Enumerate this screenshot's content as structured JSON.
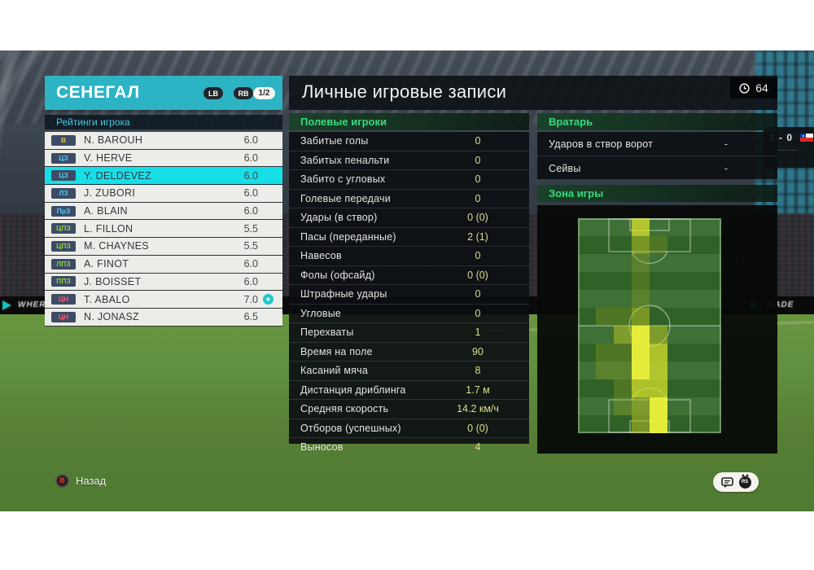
{
  "team_panel": {
    "title": "СЕНЕГАЛ",
    "nav": {
      "lb": "LB",
      "rb": "RB",
      "page": "1/2"
    },
    "ratings_header": "Рейтинги игрока",
    "players": [
      {
        "pos": "В",
        "role": "gk",
        "name": "N. BAROUH",
        "rating": "6.0",
        "selected": false,
        "star": false
      },
      {
        "pos": "ЦЗ",
        "role": "def",
        "name": "V. HERVE",
        "rating": "6.0",
        "selected": false,
        "star": false
      },
      {
        "pos": "ЦЗ",
        "role": "def",
        "name": "Y. DELDEVEZ",
        "rating": "6.0",
        "selected": true,
        "star": false
      },
      {
        "pos": "ЛЗ",
        "role": "def",
        "name": "J. ZUBORI",
        "rating": "6.0",
        "selected": false,
        "star": false
      },
      {
        "pos": "ПрЗ",
        "role": "def",
        "name": "A. BLAIN",
        "rating": "6.0",
        "selected": false,
        "star": false
      },
      {
        "pos": "ЦПЗ",
        "role": "mid",
        "name": "L. FILLON",
        "rating": "5.5",
        "selected": false,
        "star": false
      },
      {
        "pos": "ЦПЗ",
        "role": "mid",
        "name": "M. CHAYNES",
        "rating": "5.5",
        "selected": false,
        "star": false
      },
      {
        "pos": "ЛПЗ",
        "role": "mid",
        "name": "A. FINOT",
        "rating": "6.0",
        "selected": false,
        "star": false
      },
      {
        "pos": "ППЗ",
        "role": "mid",
        "name": "J. BOISSET",
        "rating": "6.0",
        "selected": false,
        "star": false
      },
      {
        "pos": "ЦН",
        "role": "fwd",
        "name": "T. ABALO",
        "rating": "7.0",
        "selected": false,
        "star": true
      },
      {
        "pos": "ЦН",
        "role": "fwd",
        "name": "N. JONASZ",
        "rating": "6.5",
        "selected": false,
        "star": false
      }
    ]
  },
  "main": {
    "title": "Личные игровые записи",
    "clock_value": "64",
    "field_players": {
      "header": "Полевые игроки",
      "stats": [
        {
          "label": "Забитые голы",
          "value": "0"
        },
        {
          "label": "Забитых пенальти",
          "value": "0"
        },
        {
          "label": "Забито с угловых",
          "value": "0"
        },
        {
          "label": "Голевые передачи",
          "value": "0"
        },
        {
          "label": "Удары (в створ)",
          "value": "0 (0)"
        },
        {
          "label": "Пасы (переданные)",
          "value": "2 (1)"
        },
        {
          "label": "Навесов",
          "value": "0"
        },
        {
          "label": "Фолы (офсайд)",
          "value": "0 (0)"
        },
        {
          "label": "Штрафные удары",
          "value": "0"
        },
        {
          "label": "Угловые",
          "value": "0"
        },
        {
          "label": "Перехваты",
          "value": "1"
        },
        {
          "label": "Время на поле",
          "value": "90"
        },
        {
          "label": "Касаний мяча",
          "value": "8"
        },
        {
          "label": "Дистанция дриблинга",
          "value": "1.7 м"
        },
        {
          "label": "Средняя скорость",
          "value": "14.2 км/ч"
        },
        {
          "label": "Отборов (успешных)",
          "value": "0 (0)"
        },
        {
          "label": "Выносов",
          "value": "4"
        }
      ]
    },
    "goalkeeper": {
      "header": "Вратарь",
      "stats": [
        {
          "label": "Ударов в створ ворот",
          "value": "-"
        },
        {
          "label": "Сейвы",
          "value": "-"
        }
      ]
    },
    "zone": {
      "header": "Зона игры",
      "heatmap": {
        "cols": 8,
        "rows": 12,
        "grid": [
          [
            0,
            0,
            0,
            3,
            0,
            0,
            0,
            0
          ],
          [
            0,
            0,
            0,
            2,
            1,
            0,
            0,
            0
          ],
          [
            0,
            0,
            0,
            1,
            0,
            0,
            0,
            0
          ],
          [
            0,
            0,
            0,
            1,
            0,
            0,
            0,
            0
          ],
          [
            0,
            0,
            0,
            1,
            0,
            0,
            0,
            0
          ],
          [
            0,
            1,
            1,
            2,
            0,
            0,
            0,
            0
          ],
          [
            0,
            0,
            2,
            4,
            2,
            0,
            0,
            0
          ],
          [
            0,
            1,
            1,
            4,
            3,
            0,
            0,
            0
          ],
          [
            0,
            1,
            1,
            4,
            3,
            0,
            0,
            0
          ],
          [
            0,
            0,
            1,
            3,
            3,
            0,
            0,
            0
          ],
          [
            0,
            0,
            1,
            2,
            4,
            0,
            0,
            0
          ],
          [
            0,
            0,
            0,
            2,
            4,
            0,
            0,
            0
          ]
        ]
      }
    }
  },
  "footer": {
    "back_button": "B",
    "back_label": "Назад"
  },
  "background": {
    "scoreboard_score": "2 - 0",
    "ad_text_left": "WHERE",
    "ad_text_right": "MADE"
  },
  "colors": {
    "accent_cyan": "#2cb4c5",
    "selected_row": "#17dfe8",
    "ratings_text": "#41c9de",
    "section_green": "#3bd97c",
    "stat_value_yellow": "#dade8d",
    "pos_gk": "#e3c33b",
    "pos_def": "#57c7f2",
    "pos_mid": "#8ed43f",
    "pos_fwd": "#ef5f6d",
    "badge_bg": "#3d4b66",
    "star_badge": "#1ec8cf",
    "back_button_red": "#e33d2e",
    "heat_scale": [
      "transparent",
      "rgba(150,165,30,0.30)",
      "rgba(185,195,35,0.52)",
      "rgba(215,225,45,0.75)",
      "rgba(238,242,58,0.95)"
    ]
  }
}
